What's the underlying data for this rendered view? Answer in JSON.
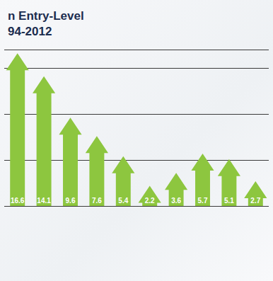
{
  "chart_data": {
    "type": "bar",
    "title": "n Entry-Level\n94-2012",
    "categories": [
      null,
      null,
      null,
      null,
      null,
      null,
      null,
      null,
      null,
      null
    ],
    "values": [
      16.6,
      14.1,
      9.6,
      7.6,
      5.4,
      2.2,
      3.6,
      5.7,
      5.1,
      2.7
    ],
    "color": "#8dc63f",
    "ylim": [
      0,
      17
    ],
    "yticks": [
      0,
      5,
      10,
      15
    ],
    "grid": true,
    "data_labels": true,
    "tick_labels": false
  }
}
